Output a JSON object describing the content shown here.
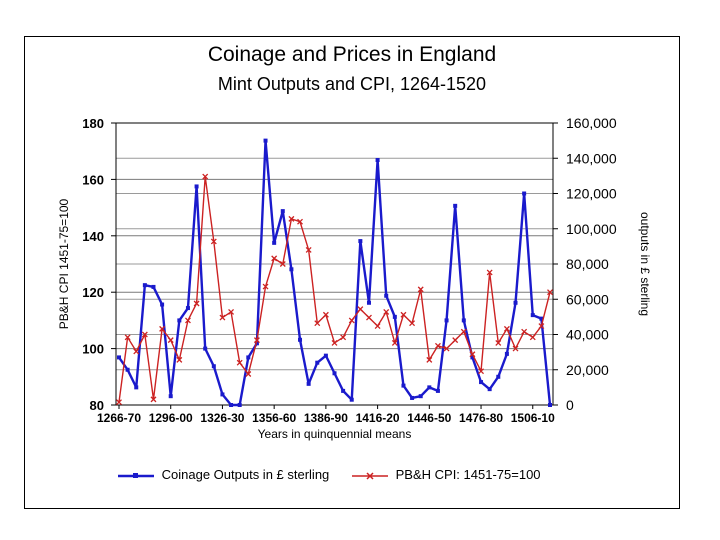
{
  "chart_data": {
    "type": "line",
    "title": "Coinage and Prices in England",
    "subtitle": "Mint Outputs and CPI, 1264-1520",
    "xlabel": "Years in quinquennial means",
    "ylabel_left": "PB&H CPI 1451-75=100",
    "ylabel_right": "outputs in £ sterling",
    "ylim_left": [
      80,
      180
    ],
    "yticks_left": [
      "80",
      "100",
      "120",
      "140",
      "160",
      "180"
    ],
    "ylim_right": [
      0,
      160000
    ],
    "yticks_right": [
      "0",
      "20,000",
      "40,000",
      "60,000",
      "80,000",
      "100,000",
      "120,000",
      "140,000",
      "160,000"
    ],
    "x_tick_labels": [
      "1266-70",
      "1296-00",
      "1326-30",
      "1356-60",
      "1386-90",
      "1416-20",
      "1446-50",
      "1476-80",
      "1506-10"
    ],
    "x": [
      "1266-70",
      "1271-75",
      "1276-80",
      "1281-85",
      "1286-90",
      "1291-95",
      "1296-00",
      "1301-05",
      "1306-10",
      "1311-15",
      "1316-20",
      "1321-25",
      "1326-30",
      "1331-35",
      "1336-40",
      "1341-45",
      "1346-50",
      "1351-55",
      "1356-60",
      "1361-65",
      "1366-70",
      "1371-75",
      "1376-80",
      "1381-85",
      "1386-90",
      "1391-95",
      "1396-00",
      "1401-05",
      "1406-10",
      "1411-15",
      "1416-20",
      "1421-25",
      "1426-30",
      "1431-35",
      "1436-40",
      "1441-45",
      "1446-50",
      "1451-55",
      "1456-60",
      "1461-65",
      "1466-70",
      "1471-75",
      "1476-80",
      "1481-85",
      "1486-90",
      "1491-95",
      "1496-00",
      "1501-05",
      "1506-10",
      "1511-15",
      "1516-20"
    ],
    "series": [
      {
        "name": "Coinage Outputs in £ sterling",
        "axis": "right",
        "color": "#1a1acc",
        "marker": "square",
        "values": [
          27000,
          20000,
          10000,
          68000,
          67000,
          57000,
          5000,
          48000,
          55000,
          124000,
          32000,
          22000,
          6000,
          0,
          0,
          27000,
          35000,
          150000,
          92000,
          110000,
          77000,
          37000,
          12000,
          24000,
          28000,
          18000,
          8000,
          3000,
          93000,
          58000,
          139000,
          62000,
          50000,
          11000,
          4000,
          5000,
          10000,
          8000,
          48000,
          113000,
          48000,
          27000,
          13000,
          9000,
          16000,
          29000,
          58000,
          120000,
          51000,
          49000,
          0
        ]
      },
      {
        "name": "PB&H CPI: 1451-75=100",
        "axis": "left",
        "color": "#cc2222",
        "marker": "x",
        "values": [
          81,
          104,
          99,
          105,
          82,
          107,
          103,
          96,
          110,
          116,
          161,
          138,
          111,
          113,
          95,
          91,
          103,
          122,
          132,
          130,
          146,
          145,
          135,
          109,
          112,
          102,
          104,
          110,
          114,
          111,
          108,
          113,
          102,
          112,
          109,
          121,
          96,
          101,
          100,
          103,
          106,
          98,
          92,
          127,
          102,
          107,
          100,
          106,
          104,
          108,
          120
        ]
      }
    ],
    "legend": "bottom"
  }
}
